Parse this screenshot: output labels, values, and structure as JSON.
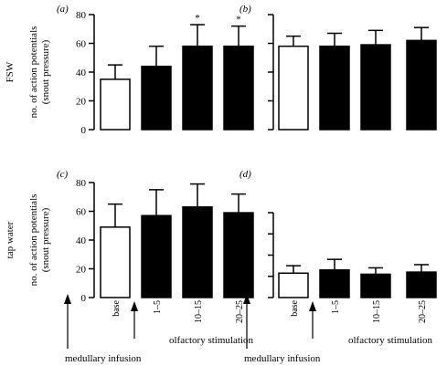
{
  "chart_data": [
    {
      "panel": "(a)",
      "type": "bar",
      "row_label": "FSW",
      "ylabel_lines": [
        "no. of action potentials",
        "(snout pressure)"
      ],
      "ylim": [
        0,
        80
      ],
      "yticks": [
        0,
        20,
        40,
        60,
        80
      ],
      "ytick_labels": [
        "0",
        "20",
        "40",
        "60",
        "80"
      ],
      "categories": [
        "base",
        "1–5",
        "10–15",
        "20–25"
      ],
      "values": [
        35,
        44,
        58,
        58
      ],
      "errors": [
        10,
        14,
        15,
        14
      ],
      "fill": [
        "#ffffff",
        "#000000",
        "#000000",
        "#000000"
      ],
      "significance": [
        "",
        "",
        "*",
        "*"
      ]
    },
    {
      "panel": "(b)",
      "type": "bar",
      "ylim": [
        0,
        80
      ],
      "yticks": [
        0,
        20,
        40,
        60,
        80
      ],
      "categories": [
        "base",
        "1–5",
        "10–15",
        "20–25"
      ],
      "values": [
        58,
        58,
        59,
        62
      ],
      "errors": [
        7,
        9,
        10,
        9
      ],
      "fill": [
        "#ffffff",
        "#000000",
        "#000000",
        "#000000"
      ]
    },
    {
      "panel": "(c)",
      "type": "bar",
      "row_label": "tap water",
      "ylabel_lines": [
        "no. of action potentials",
        "(snout pressure)"
      ],
      "ylim": [
        0,
        80
      ],
      "yticks": [
        0,
        20,
        40,
        60,
        80
      ],
      "ytick_labels": [
        "0",
        "20",
        "40",
        "60",
        "80"
      ],
      "categories": [
        "base",
        "1–5",
        "10–15",
        "20–25"
      ],
      "category_labels": [
        "base",
        "1–5",
        "10–15",
        "20–25"
      ],
      "values": [
        49,
        57,
        63,
        59
      ],
      "errors": [
        16,
        18,
        16,
        13
      ],
      "fill": [
        "#ffffff",
        "#000000",
        "#000000",
        "#000000"
      ],
      "xlabel": "olfactory stimulation",
      "annotation": "medullary infusion"
    },
    {
      "panel": "(d)",
      "type": "bar",
      "ylim": [
        0,
        80
      ],
      "yticks": [
        0,
        20,
        40,
        60,
        80
      ],
      "categories": [
        "base",
        "1–5",
        "10–15",
        "20–25"
      ],
      "category_labels": [
        "base",
        "1–5",
        "10–15",
        "20–25"
      ],
      "values": [
        23,
        26,
        22,
        24
      ],
      "errors": [
        7,
        10,
        6,
        7
      ],
      "fill": [
        "#ffffff",
        "#000000",
        "#000000",
        "#000000"
      ],
      "xlabel": "olfactory stimulation",
      "annotation": "medullary infusion"
    }
  ]
}
